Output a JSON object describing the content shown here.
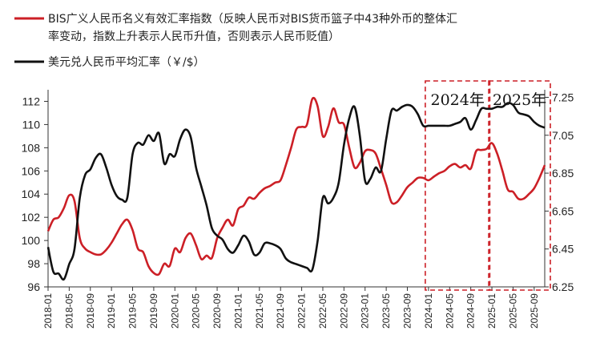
{
  "chart_data": {
    "type": "line",
    "legend": [
      {
        "line1": "BIS广义人民币名义有效汇率指数（反映人民币对BIS货币篮子中43种外币的整体汇",
        "line2": "率变动，指数上升表示人民币升值，否则表示人民币贬值）",
        "color": "#cc1f26"
      },
      {
        "line1": "美元兑人民币平均汇率（￥/$）",
        "line2": "",
        "color": "#111111"
      }
    ],
    "legend_position": "top-left",
    "x_axis": {
      "ticks": [
        "2018-01",
        "2018-05",
        "2018-09",
        "2019-01",
        "2019-05",
        "2019-09",
        "2020-01",
        "2020-05",
        "2020-09",
        "2021-01",
        "2021-05",
        "2021-09",
        "2022-01",
        "2022-05",
        "2022-09",
        "2023-01",
        "2023-05",
        "2023-09",
        "2024-01",
        "2024-05",
        "2024-09",
        "2025-01",
        "2025-05",
        "2025-09"
      ],
      "start": "2018-01",
      "end": "2025-11"
    },
    "y_left": {
      "ticks": [
        "96",
        "98",
        "100",
        "102",
        "104",
        "106",
        "108",
        "110",
        "112"
      ],
      "min": 96,
      "max": 113
    },
    "y_right": {
      "ticks": [
        "6.25",
        "6.45",
        "6.65",
        "6.85",
        "7.05",
        "7.25"
      ],
      "min": 6.25,
      "max": 7.29
    },
    "annotations": [
      {
        "label": "2024年",
        "from": "2024-01",
        "to": "2024-12"
      },
      {
        "label": "2025年",
        "from": "2025-01",
        "to": "2025-11"
      }
    ],
    "series": [
      {
        "name": "BIS广义人民币名义有效汇率指数",
        "axis": "left",
        "color": "#cc1f26",
        "points": [
          [
            "2018-01",
            100.8
          ],
          [
            "2018-02",
            101.8
          ],
          [
            "2018-03",
            102.0
          ],
          [
            "2018-04",
            102.8
          ],
          [
            "2018-05",
            103.9
          ],
          [
            "2018-06",
            103.4
          ],
          [
            "2018-07",
            100.2
          ],
          [
            "2018-08",
            99.3
          ],
          [
            "2018-09",
            99.0
          ],
          [
            "2018-10",
            98.8
          ],
          [
            "2018-11",
            98.8
          ],
          [
            "2018-12",
            99.2
          ],
          [
            "2019-01",
            99.8
          ],
          [
            "2019-02",
            100.6
          ],
          [
            "2019-03",
            101.4
          ],
          [
            "2019-04",
            101.8
          ],
          [
            "2019-05",
            100.9
          ],
          [
            "2019-06",
            99.3
          ],
          [
            "2019-07",
            99.0
          ],
          [
            "2019-08",
            97.8
          ],
          [
            "2019-09",
            97.2
          ],
          [
            "2019-10",
            97.1
          ],
          [
            "2019-11",
            98.0
          ],
          [
            "2019-12",
            97.8
          ],
          [
            "2020-01",
            99.3
          ],
          [
            "2020-02",
            99.0
          ],
          [
            "2020-03",
            100.2
          ],
          [
            "2020-04",
            100.6
          ],
          [
            "2020-05",
            99.6
          ],
          [
            "2020-06",
            98.4
          ],
          [
            "2020-07",
            98.7
          ],
          [
            "2020-08",
            98.5
          ],
          [
            "2020-09",
            100.2
          ],
          [
            "2020-10",
            101.1
          ],
          [
            "2020-11",
            101.8
          ],
          [
            "2020-12",
            101.3
          ],
          [
            "2021-01",
            102.7
          ],
          [
            "2021-02",
            103.0
          ],
          [
            "2021-03",
            103.7
          ],
          [
            "2021-04",
            103.6
          ],
          [
            "2021-05",
            104.1
          ],
          [
            "2021-06",
            104.5
          ],
          [
            "2021-07",
            104.7
          ],
          [
            "2021-08",
            105.0
          ],
          [
            "2021-09",
            105.2
          ],
          [
            "2021-10",
            106.5
          ],
          [
            "2021-11",
            108.0
          ],
          [
            "2021-12",
            109.6
          ],
          [
            "2022-01",
            109.8
          ],
          [
            "2022-02",
            110.0
          ],
          [
            "2022-03",
            112.2
          ],
          [
            "2022-04",
            111.6
          ],
          [
            "2022-05",
            109.0
          ],
          [
            "2022-06",
            109.8
          ],
          [
            "2022-07",
            111.4
          ],
          [
            "2022-08",
            110.2
          ],
          [
            "2022-09",
            110.0
          ],
          [
            "2022-10",
            108.0
          ],
          [
            "2022-11",
            106.3
          ],
          [
            "2022-12",
            106.7
          ],
          [
            "2023-01",
            107.7
          ],
          [
            "2023-02",
            107.8
          ],
          [
            "2023-03",
            107.5
          ],
          [
            "2023-04",
            106.2
          ],
          [
            "2023-05",
            104.8
          ],
          [
            "2023-06",
            103.3
          ],
          [
            "2023-07",
            103.3
          ],
          [
            "2023-08",
            103.9
          ],
          [
            "2023-09",
            104.6
          ],
          [
            "2023-10",
            105.0
          ],
          [
            "2023-11",
            105.4
          ],
          [
            "2023-12",
            105.4
          ],
          [
            "2024-01",
            105.2
          ],
          [
            "2024-02",
            105.5
          ],
          [
            "2024-03",
            105.8
          ],
          [
            "2024-04",
            106.0
          ],
          [
            "2024-05",
            106.4
          ],
          [
            "2024-06",
            106.6
          ],
          [
            "2024-07",
            106.3
          ],
          [
            "2024-08",
            106.5
          ],
          [
            "2024-09",
            106.2
          ],
          [
            "2024-10",
            107.7
          ],
          [
            "2024-11",
            107.8
          ],
          [
            "2024-12",
            107.9
          ],
          [
            "2025-01",
            108.4
          ],
          [
            "2025-02",
            107.5
          ],
          [
            "2025-03",
            106.0
          ],
          [
            "2025-04",
            104.4
          ],
          [
            "2025-05",
            104.2
          ],
          [
            "2025-06",
            103.6
          ],
          [
            "2025-07",
            103.6
          ],
          [
            "2025-08",
            104.0
          ],
          [
            "2025-09",
            104.5
          ],
          [
            "2025-10",
            105.4
          ],
          [
            "2025-11",
            106.5
          ]
        ]
      },
      {
        "name": "美元兑人民币平均汇率（￥/$）",
        "axis": "right",
        "color": "#111111",
        "points": [
          [
            "2018-01",
            6.46
          ],
          [
            "2018-02",
            6.33
          ],
          [
            "2018-03",
            6.32
          ],
          [
            "2018-04",
            6.29
          ],
          [
            "2018-05",
            6.37
          ],
          [
            "2018-06",
            6.45
          ],
          [
            "2018-07",
            6.72
          ],
          [
            "2018-08",
            6.84
          ],
          [
            "2018-09",
            6.87
          ],
          [
            "2018-10",
            6.93
          ],
          [
            "2018-11",
            6.95
          ],
          [
            "2018-12",
            6.88
          ],
          [
            "2019-01",
            6.79
          ],
          [
            "2019-02",
            6.73
          ],
          [
            "2019-03",
            6.71
          ],
          [
            "2019-04",
            6.72
          ],
          [
            "2019-05",
            6.95
          ],
          [
            "2019-06",
            7.01
          ],
          [
            "2019-07",
            7.0
          ],
          [
            "2019-08",
            7.05
          ],
          [
            "2019-09",
            7.02
          ],
          [
            "2019-10",
            7.06
          ],
          [
            "2019-11",
            6.9
          ],
          [
            "2019-12",
            6.95
          ],
          [
            "2020-01",
            6.94
          ],
          [
            "2020-02",
            7.03
          ],
          [
            "2020-03",
            7.08
          ],
          [
            "2020-04",
            7.04
          ],
          [
            "2020-05",
            6.88
          ],
          [
            "2020-06",
            6.78
          ],
          [
            "2020-07",
            6.68
          ],
          [
            "2020-08",
            6.56
          ],
          [
            "2020-09",
            6.52
          ],
          [
            "2020-10",
            6.5
          ],
          [
            "2020-11",
            6.45
          ],
          [
            "2020-12",
            6.43
          ],
          [
            "2021-01",
            6.47
          ],
          [
            "2021-02",
            6.52
          ],
          [
            "2021-03",
            6.49
          ],
          [
            "2021-04",
            6.42
          ],
          [
            "2021-05",
            6.43
          ],
          [
            "2021-06",
            6.48
          ],
          [
            "2021-07",
            6.48
          ],
          [
            "2021-08",
            6.47
          ],
          [
            "2021-09",
            6.45
          ],
          [
            "2021-10",
            6.4
          ],
          [
            "2021-11",
            6.38
          ],
          [
            "2021-12",
            6.37
          ],
          [
            "2022-01",
            6.36
          ],
          [
            "2022-02",
            6.35
          ],
          [
            "2022-03",
            6.34
          ],
          [
            "2022-04",
            6.49
          ],
          [
            "2022-05",
            6.72
          ],
          [
            "2022-06",
            6.69
          ],
          [
            "2022-07",
            6.72
          ],
          [
            "2022-08",
            6.8
          ],
          [
            "2022-09",
            7.0
          ],
          [
            "2022-10",
            7.14
          ],
          [
            "2022-11",
            7.2
          ],
          [
            "2022-12",
            7.05
          ],
          [
            "2023-01",
            6.81
          ],
          [
            "2023-02",
            6.82
          ],
          [
            "2023-03",
            6.88
          ],
          [
            "2023-04",
            6.86
          ],
          [
            "2023-05",
            7.03
          ],
          [
            "2023-06",
            7.18
          ],
          [
            "2023-07",
            7.18
          ],
          [
            "2023-08",
            7.2
          ],
          [
            "2023-09",
            7.21
          ],
          [
            "2023-10",
            7.2
          ],
          [
            "2023-11",
            7.16
          ],
          [
            "2023-12",
            7.1
          ],
          [
            "2024-01",
            7.1
          ],
          [
            "2024-02",
            7.1
          ],
          [
            "2024-03",
            7.1
          ],
          [
            "2024-04",
            7.1
          ],
          [
            "2024-05",
            7.1
          ],
          [
            "2024-06",
            7.11
          ],
          [
            "2024-07",
            7.12
          ],
          [
            "2024-08",
            7.14
          ],
          [
            "2024-09",
            7.08
          ],
          [
            "2024-10",
            7.13
          ],
          [
            "2024-11",
            7.19
          ],
          [
            "2024-12",
            7.19
          ],
          [
            "2025-01",
            7.19
          ],
          [
            "2025-02",
            7.2
          ],
          [
            "2025-03",
            7.2
          ],
          [
            "2025-04",
            7.22
          ],
          [
            "2025-05",
            7.21
          ],
          [
            "2025-06",
            7.17
          ],
          [
            "2025-07",
            7.16
          ],
          [
            "2025-08",
            7.15
          ],
          [
            "2025-09",
            7.12
          ],
          [
            "2025-10",
            7.1
          ],
          [
            "2025-11",
            7.09
          ]
        ]
      }
    ]
  }
}
